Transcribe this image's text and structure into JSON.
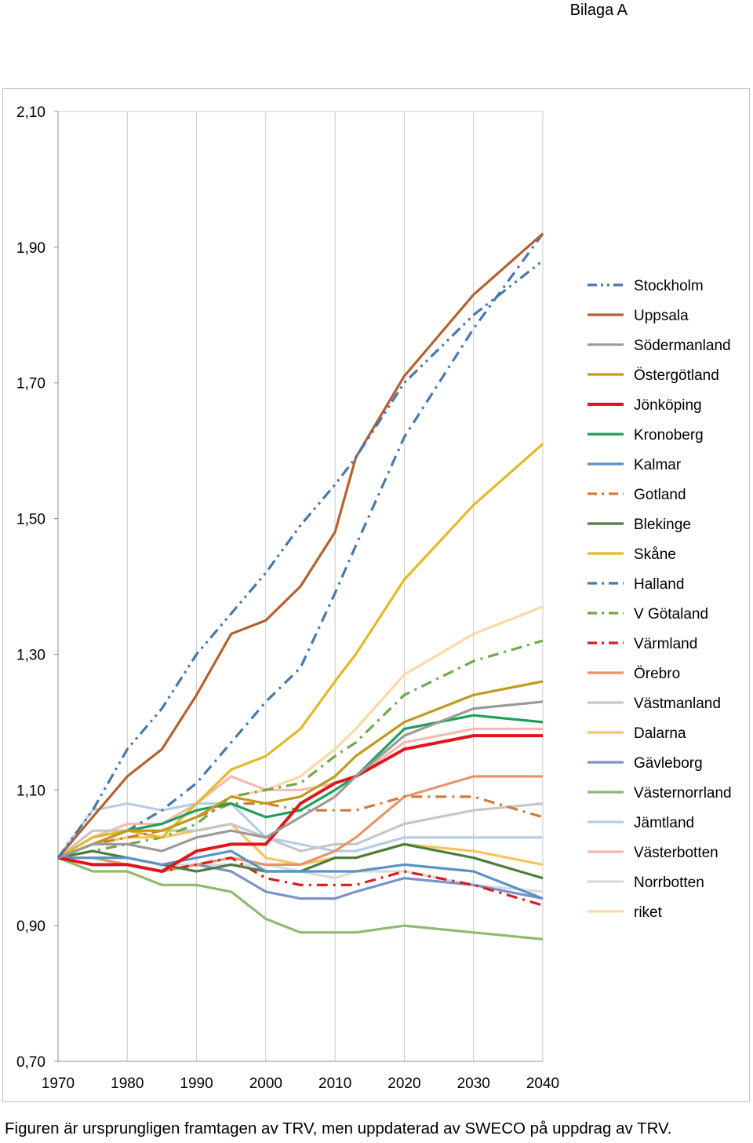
{
  "page": {
    "header": "Bilaga A",
    "caption": "Figuren är ursprungligen framtagen av TRV, men uppdaterad av SWECO på uppdrag av TRV."
  },
  "chart_data": {
    "type": "line",
    "title": "",
    "xlabel": "",
    "ylabel": "",
    "x": [
      1970,
      1975,
      1980,
      1985,
      1990,
      1995,
      2000,
      2005,
      2010,
      2013,
      2020,
      2030,
      2040
    ],
    "x_ticks": [
      "1970",
      "1980",
      "1990",
      "2000",
      "2010",
      "2020",
      "2030",
      "2040"
    ],
    "y_ticks": [
      "0,70",
      "0,90",
      "1,10",
      "1,30",
      "1,50",
      "1,70",
      "1,90",
      "2,10"
    ],
    "ylim": [
      0.7,
      2.1
    ],
    "xlim": [
      1970,
      2040
    ],
    "grid": "vertical",
    "legend_position": "right",
    "series": [
      {
        "name": "Stockholm",
        "color": "#4a78a8",
        "dash": "dashdotdot",
        "values": [
          1.0,
          1.07,
          1.16,
          1.22,
          1.3,
          1.36,
          1.42,
          1.49,
          1.55,
          1.59,
          1.7,
          1.8,
          1.88
        ]
      },
      {
        "name": "Uppsala",
        "color": "#b5622e",
        "dash": "solid",
        "values": [
          1.0,
          1.06,
          1.12,
          1.16,
          1.24,
          1.33,
          1.35,
          1.4,
          1.48,
          1.59,
          1.71,
          1.83,
          1.92
        ]
      },
      {
        "name": "Södermanland",
        "color": "#9b9b9b",
        "dash": "solid",
        "values": [
          1.0,
          1.02,
          1.02,
          1.01,
          1.03,
          1.04,
          1.03,
          1.06,
          1.09,
          1.12,
          1.18,
          1.22,
          1.23
        ]
      },
      {
        "name": "Östergötland",
        "color": "#c19a1c",
        "dash": "solid",
        "values": [
          1.0,
          1.02,
          1.04,
          1.04,
          1.06,
          1.09,
          1.08,
          1.09,
          1.12,
          1.15,
          1.2,
          1.24,
          1.26
        ]
      },
      {
        "name": "Jönköping",
        "color": "#e0161c",
        "dash": "solid",
        "values": [
          1.0,
          0.99,
          0.99,
          0.98,
          1.01,
          1.02,
          1.02,
          1.08,
          1.11,
          1.12,
          1.16,
          1.18,
          1.18
        ]
      },
      {
        "name": "Kronoberg",
        "color": "#1ea05a",
        "dash": "solid",
        "values": [
          1.0,
          1.02,
          1.04,
          1.05,
          1.07,
          1.08,
          1.06,
          1.07,
          1.1,
          1.12,
          1.19,
          1.21,
          1.2
        ]
      },
      {
        "name": "Kalmar",
        "color": "#5b93c4",
        "dash": "solid",
        "values": [
          1.0,
          1.0,
          1.0,
          0.99,
          1.0,
          1.01,
          0.98,
          0.98,
          0.98,
          0.98,
          0.99,
          0.98,
          0.94
        ]
      },
      {
        "name": "Gotland",
        "color": "#d07a3c",
        "dash": "dashdot",
        "values": [
          1.0,
          1.02,
          1.03,
          1.04,
          1.06,
          1.08,
          1.08,
          1.07,
          1.07,
          1.07,
          1.09,
          1.09,
          1.06
        ]
      },
      {
        "name": "Blekinge",
        "color": "#4c7d3a",
        "dash": "solid",
        "values": [
          1.0,
          1.01,
          1.0,
          0.99,
          0.98,
          0.99,
          0.98,
          0.98,
          1.0,
          1.0,
          1.02,
          1.0,
          0.97
        ]
      },
      {
        "name": "Skåne",
        "color": "#e5b925",
        "dash": "solid",
        "values": [
          1.0,
          1.03,
          1.04,
          1.03,
          1.08,
          1.13,
          1.15,
          1.19,
          1.26,
          1.3,
          1.41,
          1.52,
          1.61
        ]
      },
      {
        "name": "Halland",
        "color": "#4a78a8",
        "dash": "dashdot",
        "values": [
          1.0,
          1.02,
          1.04,
          1.07,
          1.11,
          1.17,
          1.23,
          1.28,
          1.39,
          1.46,
          1.62,
          1.78,
          1.92
        ]
      },
      {
        "name": "V Götaland",
        "color": "#70a84c",
        "dash": "dashdot",
        "values": [
          1.0,
          1.01,
          1.02,
          1.03,
          1.05,
          1.09,
          1.1,
          1.11,
          1.15,
          1.17,
          1.24,
          1.29,
          1.32
        ]
      },
      {
        "name": "Värmland",
        "color": "#d62020",
        "dash": "dashdot",
        "values": [
          1.0,
          0.99,
          0.99,
          0.98,
          0.99,
          1.0,
          0.97,
          0.96,
          0.96,
          0.96,
          0.98,
          0.96,
          0.93
        ]
      },
      {
        "name": "Örebro",
        "color": "#e8946a",
        "dash": "solid",
        "values": [
          1.0,
          1.0,
          0.99,
          0.98,
          0.99,
          1.0,
          0.99,
          0.99,
          1.01,
          1.03,
          1.09,
          1.12,
          1.12
        ]
      },
      {
        "name": "Västmanland",
        "color": "#c6c6c6",
        "dash": "solid",
        "values": [
          1.0,
          1.04,
          1.04,
          1.04,
          1.04,
          1.05,
          1.03,
          1.01,
          1.02,
          1.02,
          1.05,
          1.07,
          1.08
        ]
      },
      {
        "name": "Dalarna",
        "color": "#f5c660",
        "dash": "solid",
        "values": [
          1.0,
          1.02,
          1.03,
          1.03,
          1.04,
          1.05,
          1.0,
          0.99,
          1.0,
          1.0,
          1.02,
          1.01,
          0.99
        ]
      },
      {
        "name": "Gävleborg",
        "color": "#7a94c8",
        "dash": "solid",
        "values": [
          1.0,
          0.99,
          0.99,
          0.98,
          0.99,
          0.98,
          0.95,
          0.94,
          0.94,
          0.95,
          0.97,
          0.96,
          0.94
        ]
      },
      {
        "name": "Västernorrland",
        "color": "#8fba70",
        "dash": "solid",
        "values": [
          1.0,
          0.98,
          0.98,
          0.96,
          0.96,
          0.95,
          0.91,
          0.89,
          0.89,
          0.89,
          0.9,
          0.89,
          0.88
        ]
      },
      {
        "name": "Jämtland",
        "color": "#b7cde4",
        "dash": "solid",
        "values": [
          1.0,
          1.07,
          1.08,
          1.07,
          1.08,
          1.08,
          1.03,
          1.02,
          1.01,
          1.01,
          1.03,
          1.03,
          1.03
        ]
      },
      {
        "name": "Västerbotten",
        "color": "#f1bcb0",
        "dash": "solid",
        "values": [
          1.0,
          1.03,
          1.05,
          1.05,
          1.08,
          1.12,
          1.1,
          1.1,
          1.11,
          1.12,
          1.17,
          1.19,
          1.19
        ]
      },
      {
        "name": "Norrbotten",
        "color": "#d9d9d9",
        "dash": "solid",
        "values": [
          1.0,
          1.0,
          1.0,
          0.99,
          0.99,
          0.99,
          0.99,
          0.98,
          0.97,
          0.98,
          0.98,
          0.96,
          0.95
        ]
      },
      {
        "name": "riket",
        "color": "#fbd9a6",
        "dash": "solid",
        "values": [
          1.0,
          1.02,
          1.04,
          1.04,
          1.06,
          1.09,
          1.1,
          1.12,
          1.16,
          1.19,
          1.27,
          1.33,
          1.37
        ]
      }
    ]
  }
}
